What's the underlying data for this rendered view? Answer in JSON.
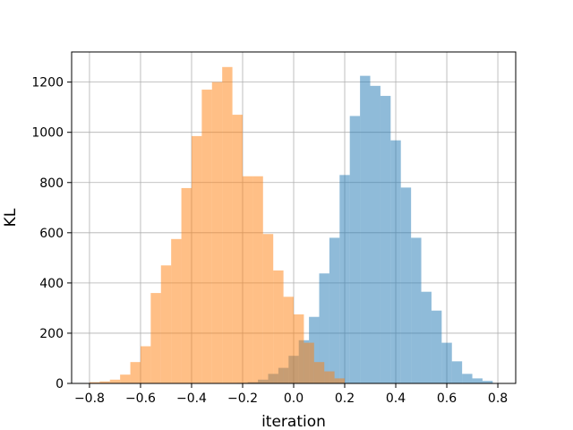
{
  "chart_data": {
    "type": "histogram",
    "xlabel": "iteration",
    "ylabel": "KL",
    "xlim": [
      -0.87,
      0.87
    ],
    "ylim": [
      0,
      1320
    ],
    "x_ticks": [
      -0.8,
      -0.6,
      -0.4,
      -0.2,
      0.0,
      0.2,
      0.4,
      0.6,
      0.8
    ],
    "x_tick_labels": [
      "−0.8",
      "−0.6",
      "−0.4",
      "−0.2",
      "0.0",
      "0.2",
      "0.4",
      "0.6",
      "0.8"
    ],
    "y_ticks": [
      0,
      200,
      400,
      600,
      800,
      1000,
      1200
    ],
    "y_tick_labels": [
      "0",
      "200",
      "400",
      "600",
      "800",
      "1000",
      "1200"
    ],
    "grid": true,
    "series": [
      {
        "color": "#1f77b4",
        "opacity": 0.5,
        "bins": [
          [
            -0.22,
            -0.18,
            2
          ],
          [
            -0.18,
            -0.14,
            5
          ],
          [
            -0.14,
            -0.1,
            15
          ],
          [
            -0.1,
            -0.06,
            38
          ],
          [
            -0.06,
            -0.02,
            62
          ],
          [
            -0.02,
            0.02,
            110
          ],
          [
            0.02,
            0.06,
            172
          ],
          [
            0.06,
            0.1,
            265
          ],
          [
            0.1,
            0.14,
            438
          ],
          [
            0.14,
            0.18,
            580
          ],
          [
            0.18,
            0.22,
            830
          ],
          [
            0.22,
            0.26,
            1065
          ],
          [
            0.26,
            0.3,
            1225
          ],
          [
            0.3,
            0.34,
            1185
          ],
          [
            0.34,
            0.38,
            1145
          ],
          [
            0.38,
            0.42,
            968
          ],
          [
            0.42,
            0.46,
            780
          ],
          [
            0.46,
            0.5,
            580
          ],
          [
            0.5,
            0.54,
            365
          ],
          [
            0.54,
            0.58,
            290
          ],
          [
            0.58,
            0.62,
            162
          ],
          [
            0.62,
            0.66,
            88
          ],
          [
            0.66,
            0.7,
            38
          ],
          [
            0.7,
            0.74,
            20
          ],
          [
            0.74,
            0.78,
            10
          ]
        ]
      },
      {
        "color": "#ff7f0e",
        "opacity": 0.5,
        "bins": [
          [
            -0.8,
            -0.76,
            5
          ],
          [
            -0.76,
            -0.72,
            8
          ],
          [
            -0.72,
            -0.68,
            15
          ],
          [
            -0.68,
            -0.64,
            35
          ],
          [
            -0.64,
            -0.6,
            85
          ],
          [
            -0.6,
            -0.56,
            148
          ],
          [
            -0.56,
            -0.52,
            360
          ],
          [
            -0.52,
            -0.48,
            470
          ],
          [
            -0.48,
            -0.44,
            575
          ],
          [
            -0.44,
            -0.4,
            778
          ],
          [
            -0.4,
            -0.36,
            985
          ],
          [
            -0.36,
            -0.32,
            1170
          ],
          [
            -0.32,
            -0.28,
            1200
          ],
          [
            -0.28,
            -0.24,
            1260
          ],
          [
            -0.24,
            -0.2,
            1070
          ],
          [
            -0.2,
            -0.16,
            825
          ],
          [
            -0.16,
            -0.12,
            825
          ],
          [
            -0.12,
            -0.08,
            595
          ],
          [
            -0.08,
            -0.04,
            450
          ],
          [
            -0.04,
            0.0,
            345
          ],
          [
            0.0,
            0.04,
            275
          ],
          [
            0.04,
            0.08,
            162
          ],
          [
            0.08,
            0.12,
            85
          ],
          [
            0.12,
            0.16,
            48
          ],
          [
            0.16,
            0.2,
            20
          ]
        ]
      }
    ]
  }
}
